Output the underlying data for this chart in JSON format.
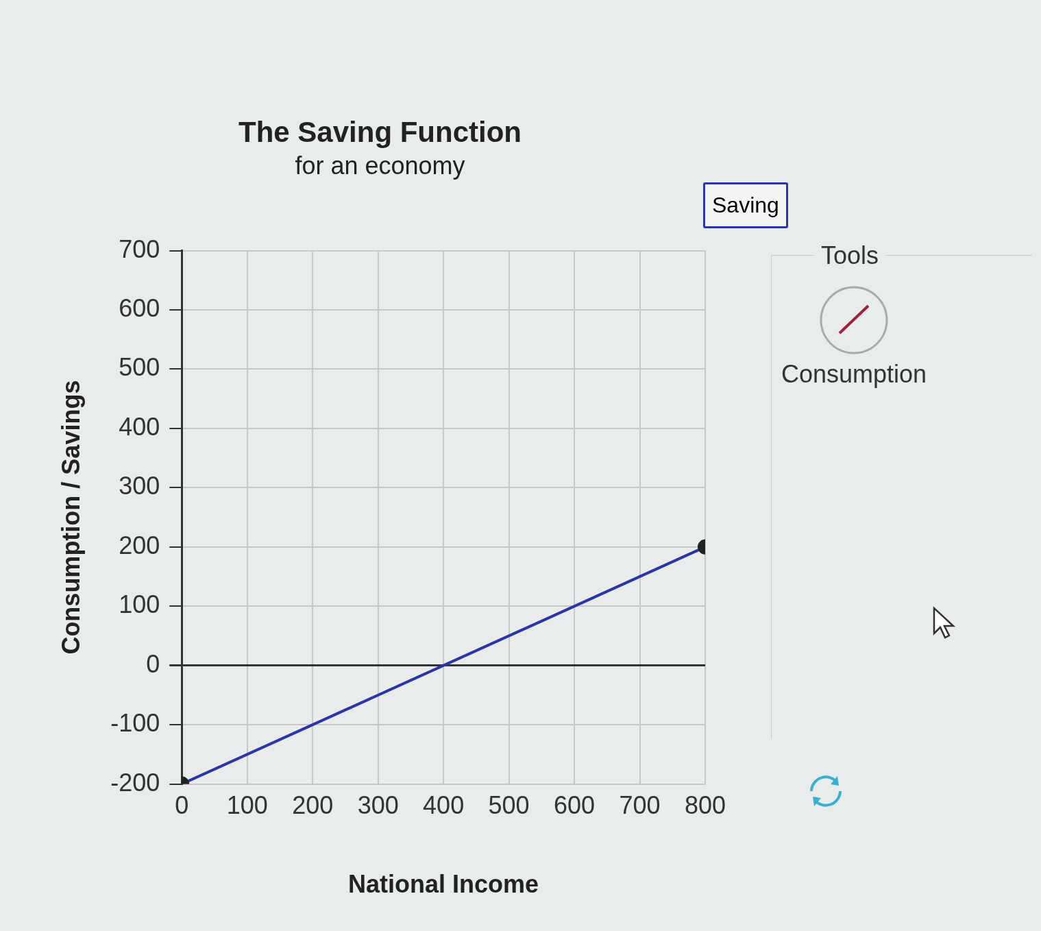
{
  "chart_data": {
    "type": "line",
    "title": "The Saving Function",
    "subtitle": "for an economy",
    "xlabel": "National Income",
    "ylabel": "Consumption / Savings",
    "x": [
      0,
      800
    ],
    "series": [
      {
        "name": "Saving",
        "color": "#2a35a8",
        "values": [
          -200,
          200
        ]
      }
    ],
    "xlim": [
      0,
      800
    ],
    "xticks": [
      0,
      100,
      200,
      300,
      400,
      500,
      600,
      700,
      800
    ],
    "ylim": [
      -200,
      700
    ],
    "yticks": [
      -200,
      -100,
      0,
      100,
      200,
      300,
      400,
      500,
      600,
      700
    ],
    "grid": true,
    "marker": "circle",
    "line_style": "solid",
    "legend": "top right",
    "annotations": [
      "Tools",
      "Consumption"
    ]
  }
}
